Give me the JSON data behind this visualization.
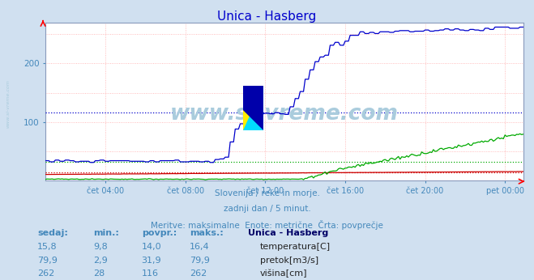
{
  "title": "Unica - Hasberg",
  "title_color": "#0000cc",
  "bg_color": "#d0e0f0",
  "plot_bg_color": "#ffffff",
  "grid_color": "#ffaaaa",
  "tick_color": "#4488bb",
  "ylim": [
    0,
    270
  ],
  "xlim": [
    0,
    287
  ],
  "yticks": [
    100,
    200
  ],
  "xtick_positions": [
    36,
    84,
    132,
    180,
    228,
    276
  ],
  "xtick_labels": [
    "čet 04:00",
    "čet 08:00",
    "čet 12:00",
    "čet 16:00",
    "čet 20:00",
    "pet 00:00"
  ],
  "avg_temp": 14.0,
  "avg_pretok": 31.9,
  "avg_visina": 116.0,
  "temp_color": "#cc0000",
  "pretok_color": "#00aa00",
  "visina_color": "#0000cc",
  "watermark": "www.si-vreme.com",
  "watermark_color": "#aaccdd",
  "subtitle1": "Slovenija / reke in morje.",
  "subtitle2": "zadnji dan / 5 minut.",
  "subtitle3": "Meritve: maksimalne  Enote: metrične  Črta: povprečje",
  "subtitle_color": "#4488bb",
  "table_headers": [
    "sedaj:",
    "min.:",
    "povpr.:",
    "maks.:",
    "Unica - Hasberg"
  ],
  "table_rows": [
    [
      "15,8",
      "9,8",
      "14,0",
      "16,4",
      "temperatura[C]",
      "#cc0000"
    ],
    [
      "79,9",
      "2,9",
      "31,9",
      "79,9",
      "pretok[m3/s]",
      "#00aa00"
    ],
    [
      "262",
      "28",
      "116",
      "262",
      "višina[cm]",
      "#0000cc"
    ]
  ],
  "table_color": "#4488bb",
  "side_watermark": "www.si-vreme.com"
}
